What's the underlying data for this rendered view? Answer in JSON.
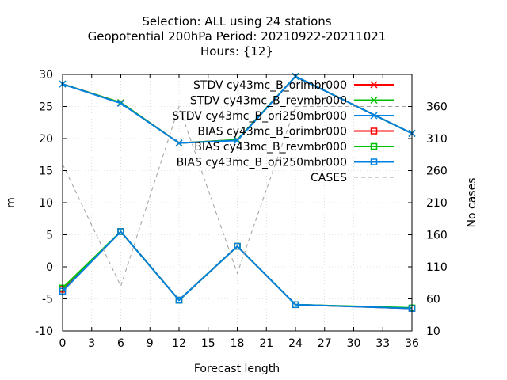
{
  "chart_data": {
    "type": "line",
    "title_lines": [
      "Selection: ALL using    24 stations",
      "Geopotential 200hPa   Period: 20210922-20211021",
      "Hours: {12}"
    ],
    "xlabel": "Forecast length",
    "ylabel": "m",
    "y2label": "No cases",
    "xlim": [
      0,
      36
    ],
    "ylim": [
      -10,
      30
    ],
    "y2lim": [
      10,
      410
    ],
    "xticks": [
      0,
      3,
      6,
      9,
      12,
      15,
      18,
      21,
      24,
      27,
      30,
      33,
      36
    ],
    "yticks": [
      -10,
      -5,
      0,
      5,
      10,
      15,
      20,
      25,
      30
    ],
    "y2ticks": [
      10,
      60,
      110,
      160,
      210,
      260,
      310,
      360
    ],
    "grid": true,
    "legend_position": "top-right",
    "series": [
      {
        "name": "STDV cy43mc_B_orimbr000",
        "color": "#ff0000",
        "marker": "x",
        "axis": "y",
        "x": [
          0,
          6,
          12,
          18,
          24,
          36
        ],
        "y": [
          28.5,
          25.6,
          19.3,
          19.8,
          29.7,
          20.8
        ]
      },
      {
        "name": "STDV cy43mc_B_revmbr000",
        "color": "#00c000",
        "marker": "x",
        "axis": "y",
        "x": [
          0,
          6,
          12,
          18,
          24,
          36
        ],
        "y": [
          28.5,
          25.6,
          19.3,
          19.8,
          29.7,
          20.8
        ]
      },
      {
        "name": "STDV cy43mc_B_ori250mbr000",
        "color": "#0080e0",
        "marker": "x",
        "axis": "y",
        "x": [
          0,
          6,
          12,
          18,
          24,
          36
        ],
        "y": [
          28.5,
          25.5,
          19.3,
          19.7,
          29.7,
          20.8
        ]
      },
      {
        "name": "BIAS cy43mc_B_orimbr000",
        "color": "#ff0000",
        "marker": "square",
        "axis": "y",
        "x": [
          0,
          6,
          12,
          18,
          24,
          36
        ],
        "y": [
          -3.5,
          5.5,
          -5.2,
          3.2,
          -5.9,
          -6.5
        ]
      },
      {
        "name": "BIAS cy43mc_B_revmbr000",
        "color": "#00c000",
        "marker": "square",
        "axis": "y",
        "x": [
          0,
          6,
          12,
          18,
          24,
          36
        ],
        "y": [
          -3.3,
          5.5,
          -5.2,
          3.2,
          -5.9,
          -6.4
        ]
      },
      {
        "name": "BIAS cy43mc_B_ori250mbr000",
        "color": "#0080e0",
        "marker": "square",
        "axis": "y",
        "x": [
          0,
          6,
          12,
          18,
          24,
          36
        ],
        "y": [
          -3.8,
          5.5,
          -5.2,
          3.2,
          -5.9,
          -6.5
        ]
      },
      {
        "name": "CASES",
        "color": "#a0a0a0",
        "marker": "none",
        "dashed": true,
        "axis": "y2",
        "x": [
          0,
          6,
          12,
          18,
          24,
          36
        ],
        "y": [
          270,
          80,
          360,
          100,
          360,
          360
        ]
      }
    ]
  }
}
